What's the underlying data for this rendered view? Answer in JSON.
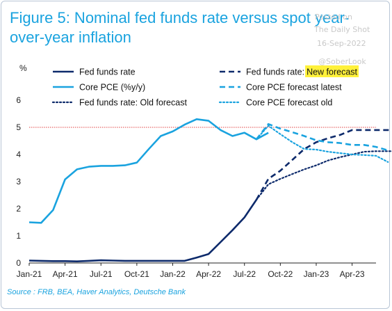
{
  "header": {
    "title": "Figure 5: Nominal fed funds rate versus spot year-over-year inflation"
  },
  "watermark": {
    "posted_on": "Posted on",
    "source": "The Daily Shot",
    "date": "16-Sep-2022",
    "handle": "@SoberLook"
  },
  "footer": {
    "source": "Source : FRB, BEA, Haver Analytics, Deutsche Bank"
  },
  "chart_data": {
    "type": "line",
    "title": "Figure 5: Nominal fed funds rate versus spot year-over-year inflation",
    "ylabel": "%",
    "xlabel": "",
    "ylim": [
      0,
      6
    ],
    "yticks": [
      0,
      1,
      2,
      3,
      4,
      5,
      6
    ],
    "x_ticks": [
      {
        "label": "Jan-21",
        "x": "2021-01"
      },
      {
        "label": "Apr-21",
        "x": "2021-04"
      },
      {
        "label": "Jul-21",
        "x": "2021-07"
      },
      {
        "label": "Oct-21",
        "x": "2021-10"
      },
      {
        "label": "Jan-22",
        "x": "2022-01"
      },
      {
        "label": "Apr-22",
        "x": "2022-04"
      },
      {
        "label": "Jul-22",
        "x": "2022-07"
      },
      {
        "label": "Oct-22",
        "x": "2022-10"
      },
      {
        "label": "Jan-23",
        "x": "2023-01"
      },
      {
        "label": "Apr-23",
        "x": "2023-04"
      }
    ],
    "x_range": [
      "2021-01",
      "2023-06"
    ],
    "grid": false,
    "legend_position": "top",
    "reference_line": {
      "y": 5,
      "color": "#e04040",
      "style": "dotted"
    },
    "highlight_color": "#fff13a",
    "series": [
      {
        "name": "Fed funds rate",
        "color": "#0d2a6b",
        "style": "solid",
        "width": 2.6,
        "points": [
          [
            "2021-01",
            0.09
          ],
          [
            "2021-02",
            0.08
          ],
          [
            "2021-03",
            0.07
          ],
          [
            "2021-04",
            0.07
          ],
          [
            "2021-05",
            0.06
          ],
          [
            "2021-06",
            0.08
          ],
          [
            "2021-07",
            0.1
          ],
          [
            "2021-08",
            0.09
          ],
          [
            "2021-09",
            0.08
          ],
          [
            "2021-10",
            0.08
          ],
          [
            "2021-11",
            0.08
          ],
          [
            "2021-12",
            0.08
          ],
          [
            "2022-01",
            0.08
          ],
          [
            "2022-02",
            0.08
          ],
          [
            "2022-03",
            0.2
          ],
          [
            "2022-04",
            0.33
          ],
          [
            "2022-05",
            0.77
          ],
          [
            "2022-06",
            1.21
          ],
          [
            "2022-07",
            1.68
          ],
          [
            "2022-08",
            2.33
          ]
        ]
      },
      {
        "name": "Core PCE (%y/y)",
        "color": "#1aa3df",
        "style": "solid",
        "width": 2.6,
        "points": [
          [
            "2021-01",
            1.5
          ],
          [
            "2021-02",
            1.48
          ],
          [
            "2021-03",
            1.95
          ],
          [
            "2021-04",
            3.08
          ],
          [
            "2021-05",
            3.45
          ],
          [
            "2021-06",
            3.55
          ],
          [
            "2021-07",
            3.58
          ],
          [
            "2021-08",
            3.58
          ],
          [
            "2021-09",
            3.6
          ],
          [
            "2021-10",
            3.7
          ],
          [
            "2021-11",
            4.2
          ],
          [
            "2021-12",
            4.68
          ],
          [
            "2022-01",
            4.85
          ],
          [
            "2022-02",
            5.1
          ],
          [
            "2022-03",
            5.3
          ],
          [
            "2022-04",
            5.24
          ],
          [
            "2022-05",
            4.9
          ],
          [
            "2022-06",
            4.68
          ],
          [
            "2022-07",
            4.8
          ],
          [
            "2022-08",
            4.56
          ],
          [
            "2022-09",
            4.8
          ]
        ]
      },
      {
        "name": "Fed funds rate: Old forecast",
        "color": "#0d2a6b",
        "style": "dotted",
        "width": 2.2,
        "points": [
          [
            "2022-08",
            2.33
          ],
          [
            "2022-09",
            2.9
          ],
          [
            "2022-10",
            3.1
          ],
          [
            "2022-11",
            3.28
          ],
          [
            "2022-12",
            3.45
          ],
          [
            "2023-01",
            3.6
          ],
          [
            "2023-02",
            3.78
          ],
          [
            "2023-03",
            3.9
          ],
          [
            "2023-04",
            4.0
          ],
          [
            "2023-05",
            4.1
          ],
          [
            "2023-06",
            4.12
          ],
          [
            "2023-07",
            4.12
          ],
          [
            "2023-08",
            4.12
          ]
        ]
      },
      {
        "name": "Fed funds rate: New forecast",
        "name_prefix": "Fed funds rate:",
        "name_highlight": "New forecast",
        "color": "#0d2a6b",
        "style": "dashed",
        "width": 2.6,
        "points": [
          [
            "2022-08",
            2.33
          ],
          [
            "2022-09",
            3.1
          ],
          [
            "2022-10",
            3.4
          ],
          [
            "2022-11",
            3.8
          ],
          [
            "2022-12",
            4.2
          ],
          [
            "2023-01",
            4.45
          ],
          [
            "2023-02",
            4.6
          ],
          [
            "2023-03",
            4.72
          ],
          [
            "2023-04",
            4.9
          ],
          [
            "2023-05",
            4.9
          ],
          [
            "2023-06",
            4.9
          ],
          [
            "2023-07",
            4.9
          ],
          [
            "2023-08",
            4.9
          ]
        ]
      },
      {
        "name": "Core PCE forecast latest",
        "color": "#1aa3df",
        "style": "dashed",
        "width": 2.6,
        "points": [
          [
            "2022-08",
            4.56
          ],
          [
            "2022-09",
            5.12
          ],
          [
            "2022-10",
            4.95
          ],
          [
            "2022-11",
            4.82
          ],
          [
            "2022-12",
            4.68
          ],
          [
            "2023-01",
            4.52
          ],
          [
            "2023-02",
            4.45
          ],
          [
            "2023-03",
            4.42
          ],
          [
            "2023-04",
            4.35
          ],
          [
            "2023-05",
            4.35
          ],
          [
            "2023-06",
            4.28
          ],
          [
            "2023-07",
            4.15
          ]
        ]
      },
      {
        "name": "Core PCE forecast old",
        "color": "#1aa3df",
        "style": "dotted",
        "width": 2.2,
        "points": [
          [
            "2022-08",
            4.56
          ],
          [
            "2022-09",
            5.06
          ],
          [
            "2022-10",
            4.75
          ],
          [
            "2022-11",
            4.45
          ],
          [
            "2022-12",
            4.2
          ],
          [
            "2023-01",
            4.18
          ],
          [
            "2023-02",
            4.1
          ],
          [
            "2023-03",
            4.05
          ],
          [
            "2023-04",
            4.0
          ],
          [
            "2023-05",
            3.98
          ],
          [
            "2023-06",
            3.95
          ],
          [
            "2023-07",
            3.72
          ]
        ]
      }
    ]
  }
}
